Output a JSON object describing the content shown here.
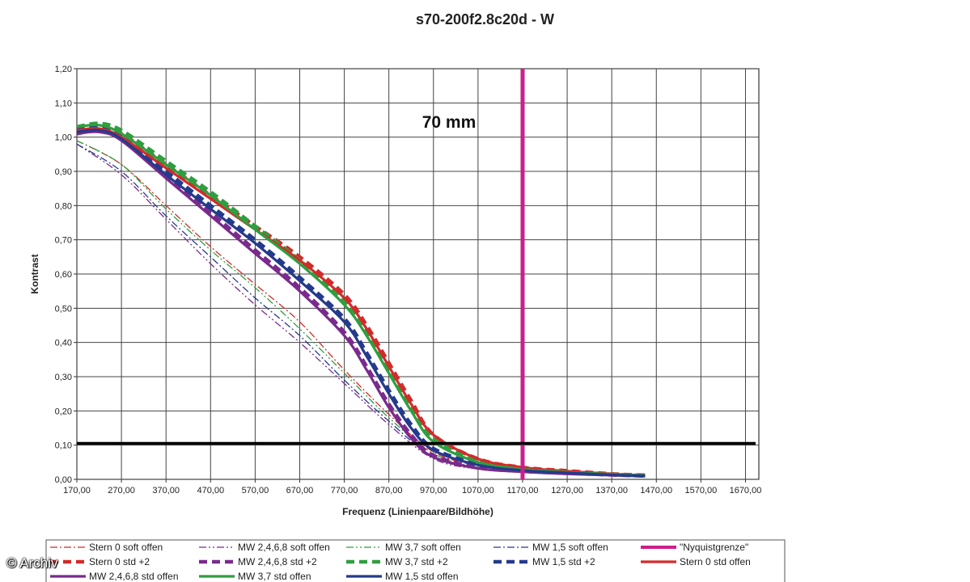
{
  "chart_data": {
    "type": "line",
    "title": "s70-200f2.8c20d - W",
    "annotation": "70 mm",
    "xlabel": "Frequenz (Linienpaare/Bildhöhe)",
    "ylabel": "Kontrast",
    "xlim": [
      170,
      1700
    ],
    "ylim": [
      0,
      1.2
    ],
    "x_ticks": [
      "170,00",
      "270,00",
      "370,00",
      "470,00",
      "570,00",
      "670,00",
      "770,00",
      "870,00",
      "970,00",
      "1070,00",
      "1170,00",
      "1270,00",
      "1370,00",
      "1470,00",
      "1570,00",
      "1670,00"
    ],
    "y_ticks": [
      "0,00",
      "0,10",
      "0,20",
      "0,30",
      "0,40",
      "0,50",
      "0,60",
      "0,70",
      "0,80",
      "0,90",
      "1,00",
      "1,10",
      "1,20"
    ],
    "grid": true,
    "legend_position": "bottom",
    "reference_lines": [
      {
        "name": "\"Nyquistgrenze\"",
        "orientation": "vertical",
        "x": 1170,
        "color": "#cc1f8a"
      },
      {
        "orientation": "horizontal",
        "y": 0.105,
        "color": "#000000"
      }
    ],
    "series": [
      {
        "name": "Stern 0 soft offen",
        "color": "#d42a2a",
        "style": "dashdot",
        "x": [
          170,
          270,
          370,
          470,
          570,
          670,
          770,
          870,
          970,
          1070,
          1170,
          1270,
          1370,
          1445
        ],
        "values": [
          0.99,
          0.92,
          0.8,
          0.68,
          0.57,
          0.46,
          0.32,
          0.19,
          0.08,
          0.04,
          0.025,
          0.018,
          0.012,
          0.01
        ]
      },
      {
        "name": "MW 2,4,6,8 soft offen",
        "color": "#7a2a8c",
        "style": "dashdotdot",
        "x": [
          170,
          270,
          370,
          470,
          570,
          670,
          770,
          870,
          970,
          1070,
          1170,
          1270,
          1370,
          1445
        ],
        "values": [
          0.98,
          0.89,
          0.76,
          0.63,
          0.51,
          0.4,
          0.28,
          0.16,
          0.06,
          0.03,
          0.02,
          0.014,
          0.01,
          0.008
        ]
      },
      {
        "name": "MW 3,7 soft offen",
        "color": "#2f9e3f",
        "style": "dashdotdot",
        "x": [
          170,
          270,
          370,
          470,
          570,
          670,
          770,
          870,
          970,
          1070,
          1170,
          1270,
          1370,
          1445
        ],
        "values": [
          0.99,
          0.92,
          0.79,
          0.67,
          0.56,
          0.44,
          0.31,
          0.18,
          0.075,
          0.035,
          0.022,
          0.016,
          0.011,
          0.009
        ]
      },
      {
        "name": "MW 1,5 soft offen",
        "color": "#243a8c",
        "style": "dashdot",
        "x": [
          170,
          270,
          370,
          470,
          570,
          670,
          770,
          870,
          970,
          1070,
          1170,
          1270,
          1370,
          1445
        ],
        "values": [
          0.98,
          0.9,
          0.77,
          0.65,
          0.53,
          0.42,
          0.29,
          0.17,
          0.065,
          0.032,
          0.021,
          0.015,
          0.011,
          0.008
        ]
      },
      {
        "name": "Stern 0 std +2",
        "color": "#d42a2a",
        "style": "dashbig",
        "x": [
          170,
          220,
          270,
          370,
          470,
          570,
          670,
          770,
          820,
          870,
          920,
          970,
          1070,
          1170,
          1270,
          1370,
          1445
        ],
        "values": [
          1.02,
          1.03,
          1.01,
          0.92,
          0.83,
          0.74,
          0.65,
          0.54,
          0.45,
          0.34,
          0.23,
          0.13,
          0.06,
          0.035,
          0.025,
          0.016,
          0.012
        ]
      },
      {
        "name": "MW 2,4,6,8 std +2",
        "color": "#7a2a8c",
        "style": "dashbig",
        "x": [
          170,
          220,
          270,
          370,
          470,
          570,
          670,
          770,
          820,
          870,
          920,
          970,
          1070,
          1170,
          1270,
          1370,
          1445
        ],
        "values": [
          1.01,
          1.02,
          1.0,
          0.89,
          0.78,
          0.67,
          0.56,
          0.43,
          0.33,
          0.22,
          0.13,
          0.07,
          0.035,
          0.025,
          0.018,
          0.013,
          0.01
        ]
      },
      {
        "name": "MW 3,7 std +2",
        "color": "#2f9e3f",
        "style": "dashbig",
        "x": [
          170,
          220,
          270,
          370,
          470,
          570,
          670,
          770,
          820,
          870,
          920,
          970,
          1070,
          1170,
          1270,
          1370,
          1445
        ],
        "values": [
          1.03,
          1.04,
          1.02,
          0.93,
          0.84,
          0.74,
          0.64,
          0.52,
          0.43,
          0.32,
          0.21,
          0.12,
          0.055,
          0.032,
          0.022,
          0.015,
          0.011
        ]
      },
      {
        "name": "MW 1,5 std +2",
        "color": "#243a8c",
        "style": "dashbig",
        "x": [
          170,
          220,
          270,
          370,
          470,
          570,
          670,
          770,
          820,
          870,
          920,
          970,
          1070,
          1170,
          1270,
          1370,
          1445
        ],
        "values": [
          1.02,
          1.03,
          1.0,
          0.9,
          0.8,
          0.7,
          0.59,
          0.47,
          0.37,
          0.26,
          0.16,
          0.09,
          0.045,
          0.028,
          0.02,
          0.014,
          0.01
        ]
      },
      {
        "name": "Stern 0 std offen",
        "color": "#d42a2a",
        "style": "solid",
        "x": [
          170,
          220,
          270,
          370,
          470,
          570,
          670,
          770,
          820,
          870,
          920,
          970,
          1070,
          1170,
          1270,
          1370,
          1445
        ],
        "values": [
          1.02,
          1.025,
          1.0,
          0.91,
          0.82,
          0.73,
          0.64,
          0.53,
          0.44,
          0.33,
          0.22,
          0.13,
          0.06,
          0.035,
          0.024,
          0.016,
          0.011
        ]
      },
      {
        "name": "MW 2,4,6,8 std offen",
        "color": "#7a2a8c",
        "style": "solid",
        "x": [
          170,
          220,
          270,
          370,
          470,
          570,
          670,
          770,
          820,
          870,
          920,
          970,
          1070,
          1170,
          1270,
          1370,
          1445
        ],
        "values": [
          1.01,
          1.015,
          0.99,
          0.88,
          0.77,
          0.66,
          0.55,
          0.42,
          0.32,
          0.21,
          0.12,
          0.065,
          0.032,
          0.022,
          0.016,
          0.012,
          0.009
        ]
      },
      {
        "name": "MW 3,7 std offen",
        "color": "#2f9e3f",
        "style": "solid",
        "x": [
          170,
          220,
          270,
          370,
          470,
          570,
          670,
          770,
          820,
          870,
          920,
          970,
          1070,
          1170,
          1270,
          1370,
          1445
        ],
        "values": [
          1.03,
          1.035,
          1.01,
          0.92,
          0.83,
          0.73,
          0.63,
          0.51,
          0.42,
          0.31,
          0.2,
          0.11,
          0.05,
          0.03,
          0.021,
          0.015,
          0.011
        ]
      },
      {
        "name": "MW 1,5 std offen",
        "color": "#243a8c",
        "style": "solid",
        "x": [
          170,
          220,
          270,
          370,
          470,
          570,
          670,
          770,
          820,
          870,
          920,
          970,
          1070,
          1170,
          1270,
          1370,
          1445
        ],
        "values": [
          1.015,
          1.02,
          0.995,
          0.89,
          0.79,
          0.69,
          0.58,
          0.46,
          0.36,
          0.25,
          0.15,
          0.085,
          0.042,
          0.026,
          0.019,
          0.013,
          0.01
        ]
      }
    ]
  },
  "credit": "© Archiv"
}
